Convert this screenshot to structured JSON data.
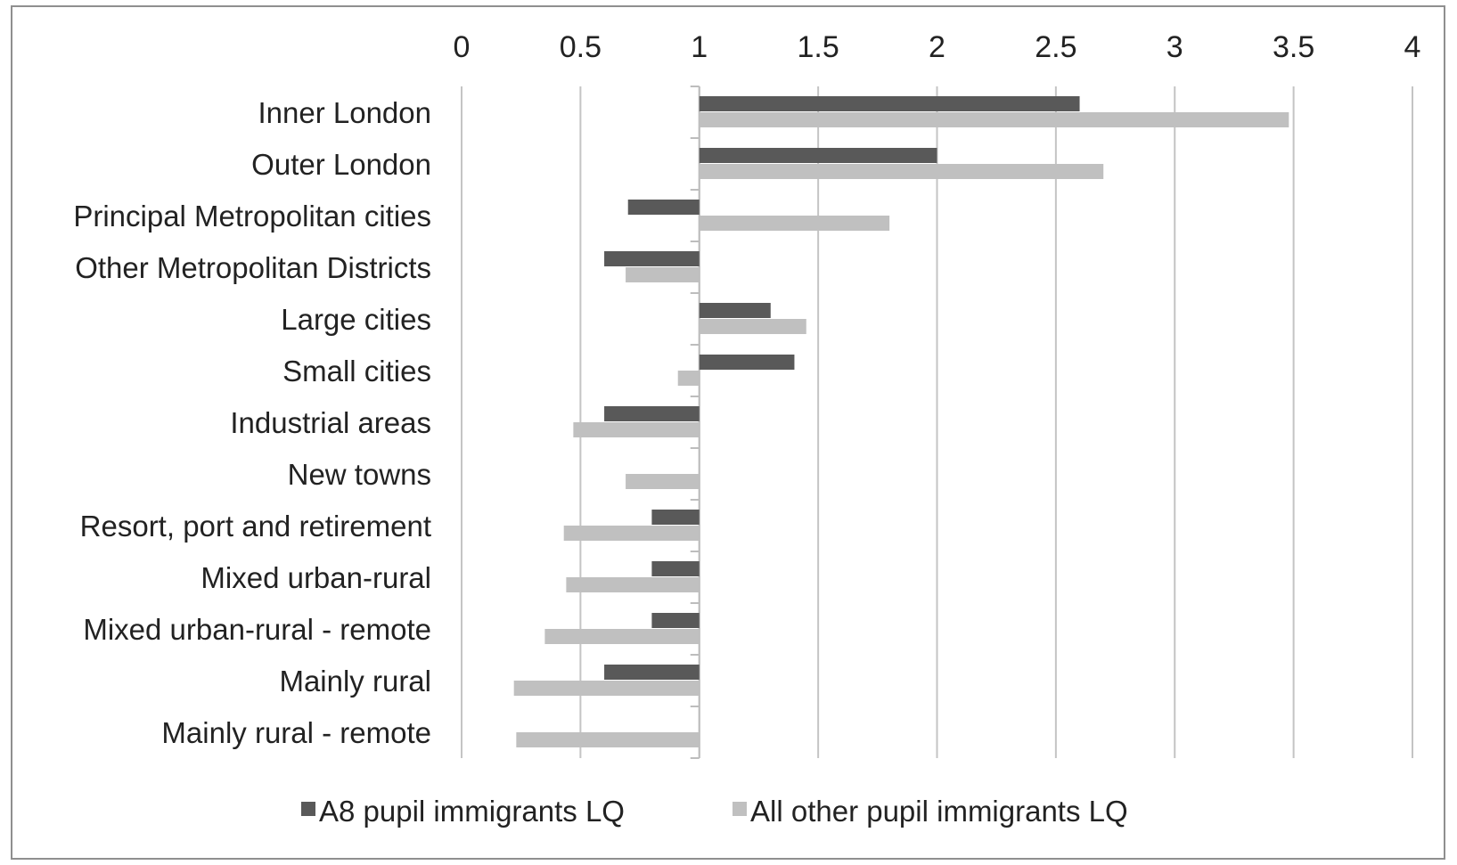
{
  "chart_data": {
    "type": "bar",
    "orientation": "horizontal",
    "baseline": 1,
    "xlim": [
      0,
      4
    ],
    "xticks": [
      "0",
      "0.5",
      "1",
      "1.5",
      "2",
      "2.5",
      "3",
      "3.5",
      "4"
    ],
    "xtick_values": [
      0,
      0.5,
      1,
      1.5,
      2,
      2.5,
      3,
      3.5,
      4
    ],
    "x_axis_position": "top",
    "grid": true,
    "legend_position": "bottom",
    "categories": [
      "Inner London",
      "Outer London",
      "Principal Metropolitan cities",
      "Other Metropolitan Districts",
      "Large cities",
      "Small cities",
      "Industrial areas",
      "New towns",
      "Resort, port and retirement",
      "Mixed urban-rural",
      "Mixed urban-rural - remote",
      "Mainly rural",
      "Mainly rural - remote"
    ],
    "series": [
      {
        "name": "A8 pupil immigrants LQ",
        "color": "#595959",
        "values": [
          2.6,
          2.0,
          0.7,
          0.6,
          1.3,
          1.4,
          0.6,
          1.0,
          0.8,
          0.8,
          0.8,
          0.6,
          1.0
        ]
      },
      {
        "name": "All other pupil immigrants LQ",
        "color": "#c0c0c0",
        "values": [
          3.48,
          2.7,
          1.8,
          0.69,
          1.45,
          0.91,
          0.47,
          0.69,
          0.43,
          0.44,
          0.35,
          0.22,
          0.23
        ]
      }
    ]
  }
}
